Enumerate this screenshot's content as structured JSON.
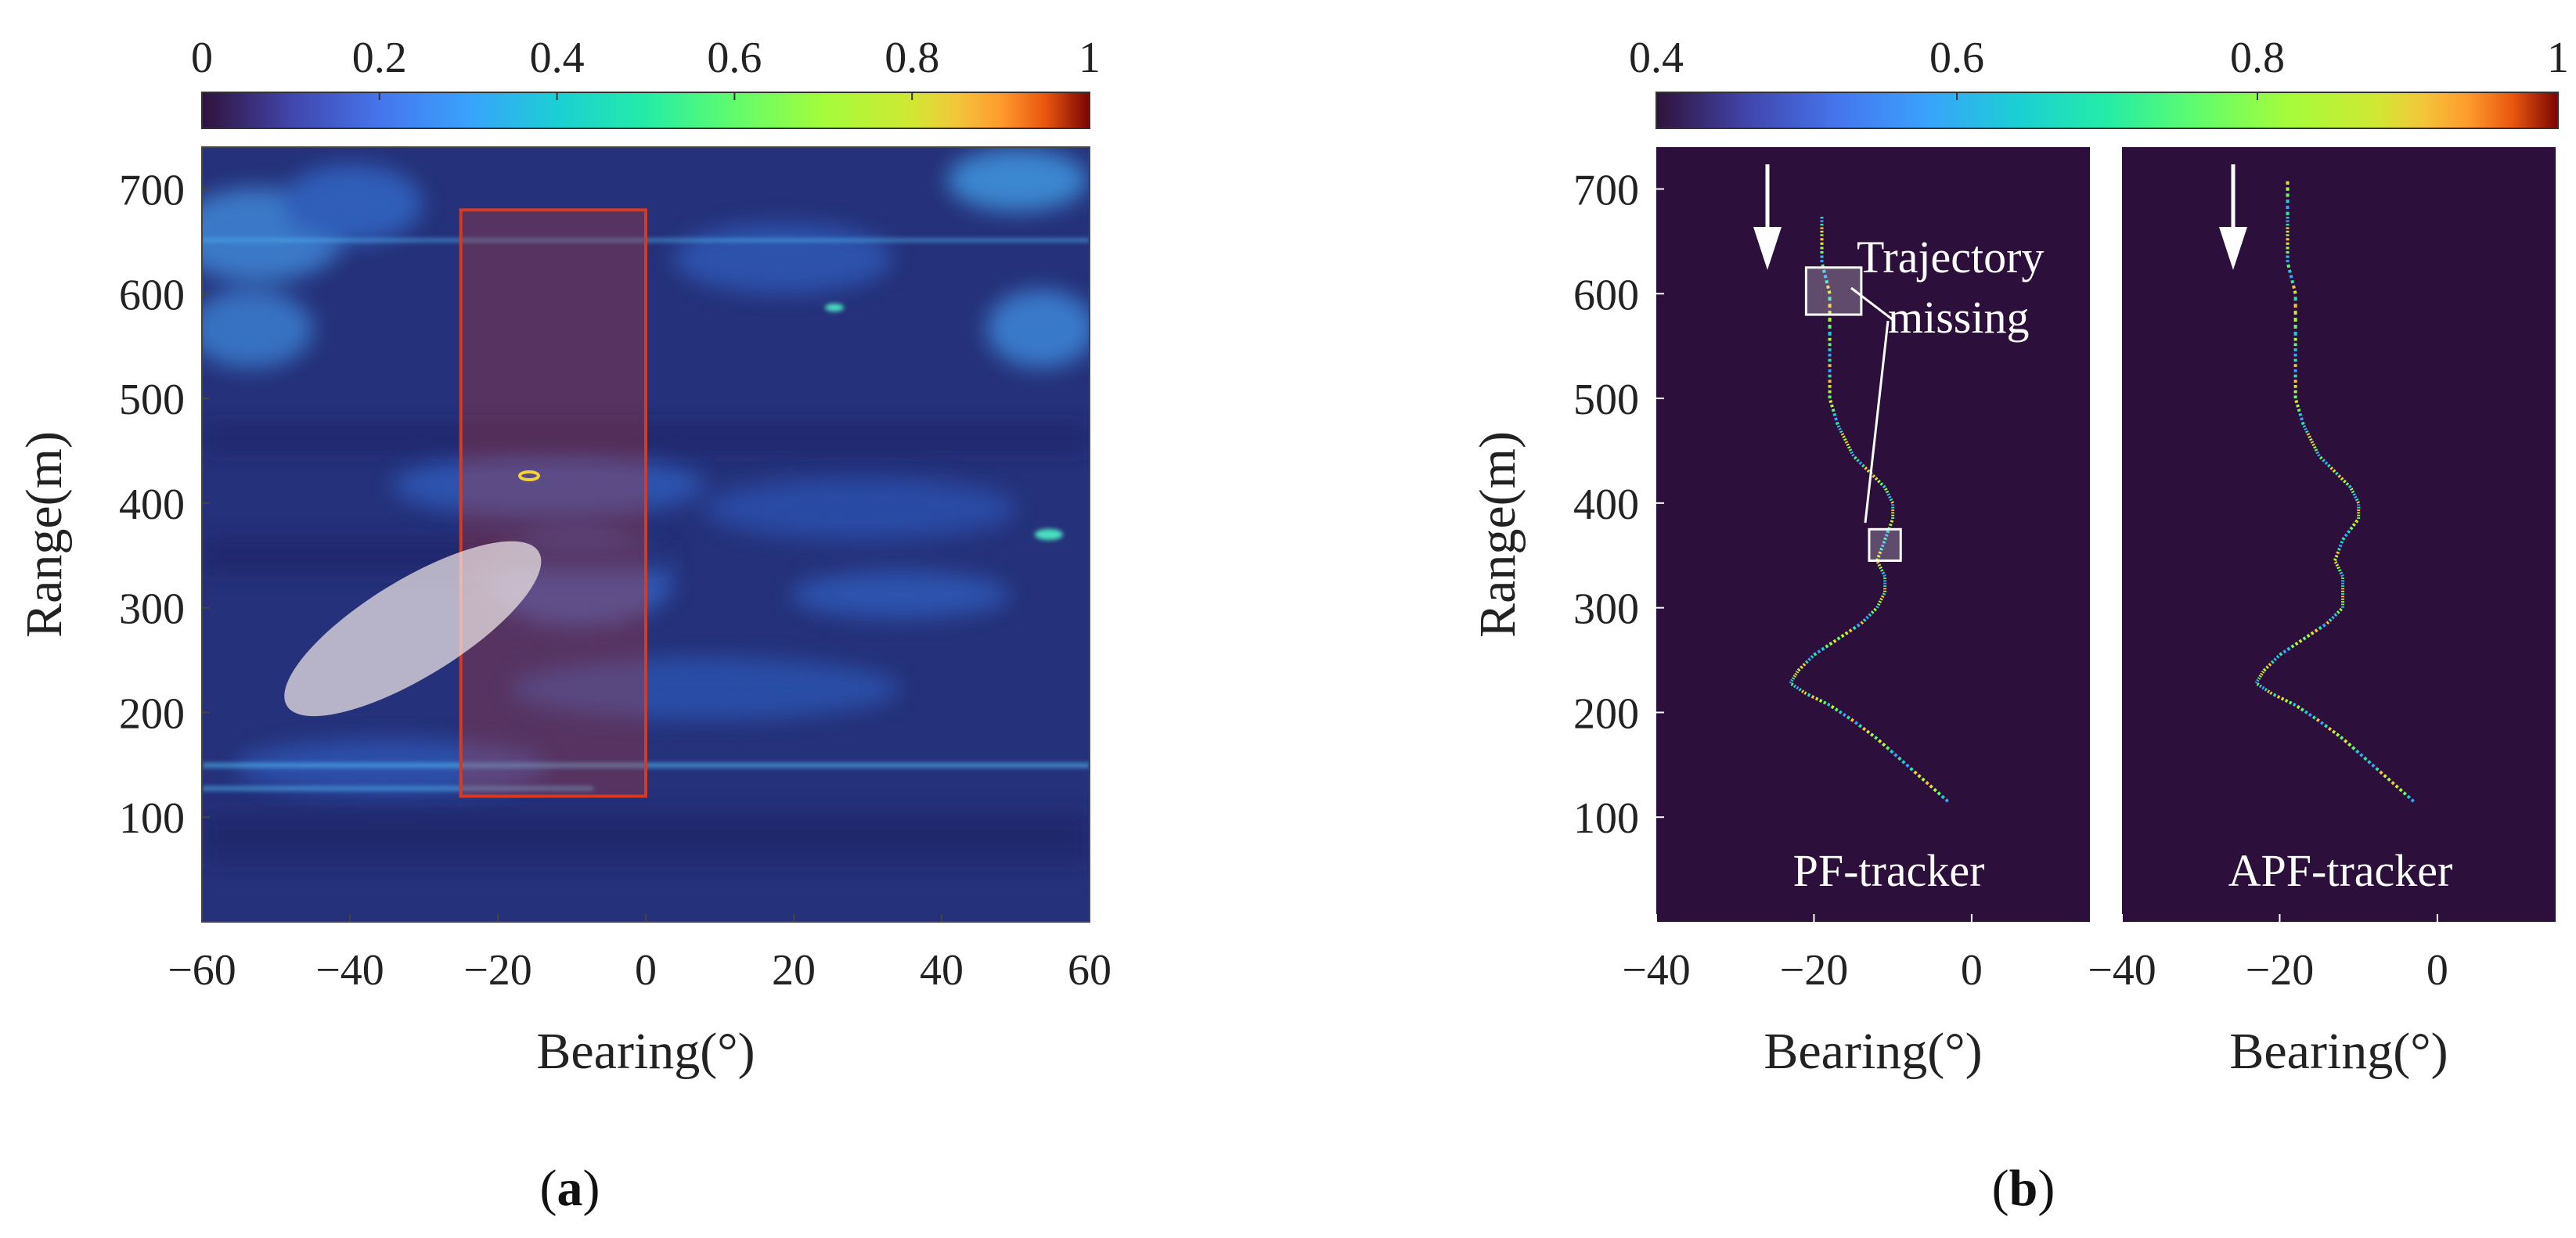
{
  "colors": {
    "heatmap_base": "#25317a",
    "track_bg": "#2d0f3c",
    "roi_rect": "#d93a1f",
    "ellipse": "#f0e6e6",
    "annotation": "#ffffff"
  },
  "panel_labels": {
    "a": "a",
    "b": "b"
  },
  "chart_data": [
    {
      "id": "a",
      "type": "heatmap",
      "title": "",
      "xlabel": "Bearing(°)",
      "ylabel": "Range(m)",
      "xlim": [
        -60,
        60
      ],
      "ylim": [
        0,
        740
      ],
      "x_ticks": [
        -60,
        -40,
        -20,
        0,
        20,
        40,
        60
      ],
      "x_tick_labels": [
        "−60",
        "−40",
        "−20",
        "0",
        "20",
        "40",
        "60"
      ],
      "y_ticks": [
        100,
        200,
        300,
        400,
        500,
        600,
        700
      ],
      "y_tick_labels": [
        "100",
        "200",
        "300",
        "400",
        "500",
        "600",
        "700"
      ],
      "colorbar": {
        "range": [
          0,
          1
        ],
        "ticks": [
          0,
          0.2,
          0.4,
          0.6,
          0.8,
          1
        ],
        "tick_labels": [
          "0",
          "0.2",
          "0.4",
          "0.6",
          "0.8",
          "1"
        ],
        "colormap": "turbo"
      },
      "annotations": [
        {
          "kind": "rectangle",
          "bearing_range": [
            -25,
            0
          ],
          "range_range": [
            120,
            680
          ]
        },
        {
          "kind": "ellipse",
          "center": [
            -35,
            270
          ],
          "span_bearing": [
            -50,
            -13
          ],
          "span_range": [
            200,
            360
          ]
        }
      ]
    },
    {
      "id": "b",
      "type": "scatter",
      "title": "",
      "xlabel": "Bearing(°)",
      "ylabel": "Range(m)",
      "ylim": [
        0,
        740
      ],
      "y_ticks": [
        100,
        200,
        300,
        400,
        500,
        600,
        700
      ],
      "y_tick_labels": [
        "100",
        "200",
        "300",
        "400",
        "500",
        "600",
        "700"
      ],
      "colorbar": {
        "range": [
          0.4,
          1
        ],
        "ticks": [
          0.4,
          0.6,
          0.8,
          1
        ],
        "tick_labels": [
          "0.4",
          "0.6",
          "0.8",
          "1"
        ],
        "colormap": "turbo"
      },
      "panels": [
        {
          "name": "PF-tracker",
          "xlim": [
            -40,
            15
          ],
          "x_ticks": [
            -40,
            -20,
            0
          ],
          "x_tick_labels": [
            "−40",
            "−20",
            "0"
          ],
          "annotation_text": [
            "Trajectory",
            "missing"
          ],
          "missing_regions": [
            {
              "bearing_range": [
                -21,
                -14
              ],
              "range_range": [
                580,
                625
              ]
            },
            {
              "bearing_range": [
                -13,
                -9
              ],
              "range_range": [
                345,
                375
              ]
            }
          ],
          "track": [
            [
              -3,
              115
            ],
            [
              -6,
              135
            ],
            [
              -9,
              155
            ],
            [
              -12,
              175
            ],
            [
              -15,
              192
            ],
            [
              -18,
              207
            ],
            [
              -21,
              218
            ],
            [
              -23,
              228
            ],
            [
              -22,
              240
            ],
            [
              -20,
              255
            ],
            [
              -17,
              270
            ],
            [
              -14,
              285
            ],
            [
              -12,
              300
            ],
            [
              -11,
              315
            ],
            [
              -11,
              330
            ],
            [
              -12,
              345
            ],
            [
              -11,
              365
            ],
            [
              -10,
              385
            ],
            [
              -10,
              400
            ],
            [
              -11,
              415
            ],
            [
              -13,
              430
            ],
            [
              -15,
              445
            ],
            [
              -16,
              460
            ],
            [
              -17,
              475
            ],
            [
              -18,
              500
            ],
            [
              -18,
              530
            ],
            [
              -18,
              560
            ],
            [
              -18,
              600
            ],
            [
              -19,
              630
            ],
            [
              -19,
              655
            ],
            [
              -19,
              675
            ]
          ]
        },
        {
          "name": "APF-tracker",
          "xlim": [
            -40,
            15
          ],
          "x_ticks": [
            -40,
            -20,
            0
          ],
          "x_tick_labels": [
            "−40",
            "−20",
            "0"
          ],
          "track": [
            [
              -3,
              115
            ],
            [
              -6,
              135
            ],
            [
              -9,
              155
            ],
            [
              -12,
              175
            ],
            [
              -15,
              192
            ],
            [
              -18,
              207
            ],
            [
              -21,
              218
            ],
            [
              -23,
              228
            ],
            [
              -22,
              240
            ],
            [
              -20,
              255
            ],
            [
              -17,
              270
            ],
            [
              -14,
              285
            ],
            [
              -12,
              300
            ],
            [
              -12,
              315
            ],
            [
              -12,
              330
            ],
            [
              -13,
              345
            ],
            [
              -12,
              365
            ],
            [
              -10,
              385
            ],
            [
              -10,
              400
            ],
            [
              -11,
              415
            ],
            [
              -13,
              430
            ],
            [
              -15,
              445
            ],
            [
              -16,
              460
            ],
            [
              -17,
              475
            ],
            [
              -18,
              500
            ],
            [
              -18,
              530
            ],
            [
              -18,
              560
            ],
            [
              -18,
              600
            ],
            [
              -19,
              630
            ],
            [
              -19,
              655
            ],
            [
              -19,
              675
            ],
            [
              -19,
              710
            ]
          ]
        }
      ]
    }
  ]
}
